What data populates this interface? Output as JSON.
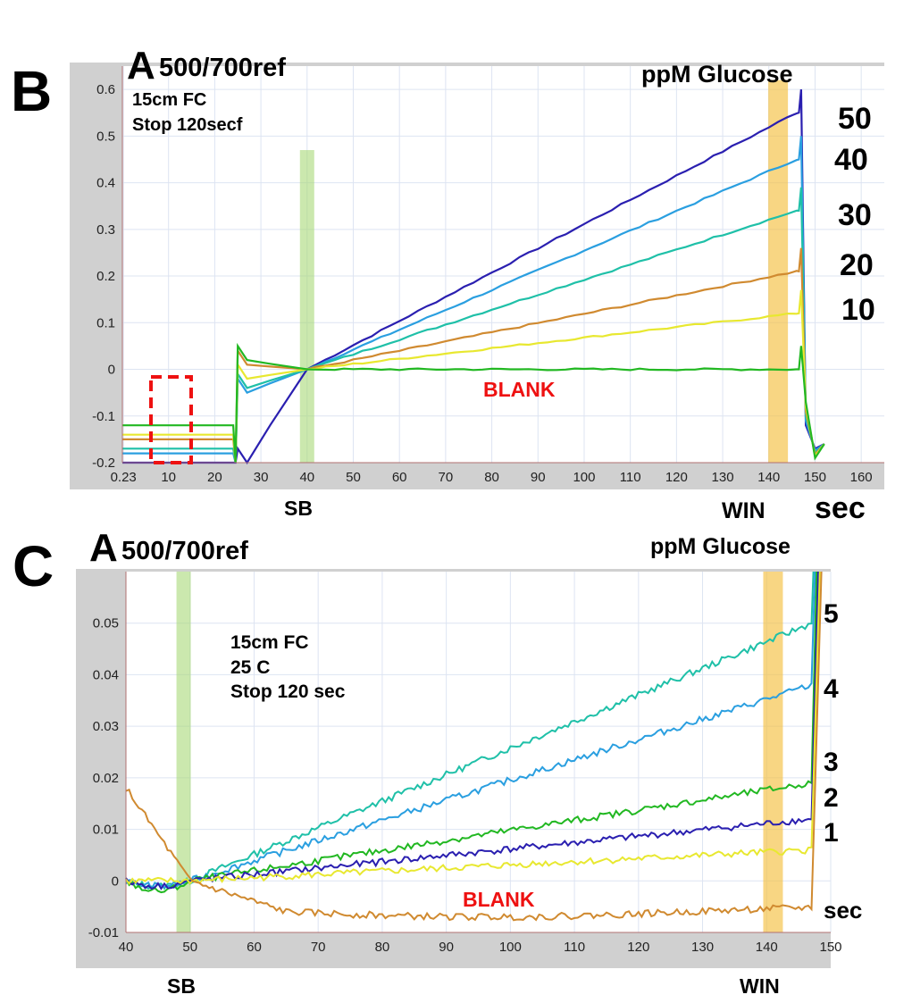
{
  "chart_data": [
    {
      "type": "line",
      "panel_label": "B",
      "title_letter": "A",
      "title_rest": "500/700ref",
      "conditions": [
        "15cm FC",
        "Stop 120secf"
      ],
      "legend_title": "ppM Glucose",
      "x_label": "sec",
      "xlim": [
        0,
        165
      ],
      "ylim": [
        -0.2,
        0.65
      ],
      "x_ticks": [
        "0.23",
        "10",
        "20",
        "30",
        "40",
        "50",
        "60",
        "70",
        "80",
        "90",
        "100",
        "110",
        "120",
        "130",
        "140",
        "150",
        "160"
      ],
      "y_ticks": [
        "0.6",
        "0.5",
        "0.4",
        "0.3",
        "0.2",
        "0.1",
        "0",
        "-0.1",
        "-0.2"
      ],
      "grid": true,
      "annotations": {
        "blank": "BLANK",
        "sb": "SB",
        "win": "WIN"
      },
      "markers": {
        "sb_time": 40,
        "win_time": 142
      },
      "series": [
        {
          "name": "50",
          "color": "#2a1fb0",
          "start_y": -0.2,
          "end_y": 0.55,
          "base": -0.2
        },
        {
          "name": "40",
          "color": "#2a9fe0",
          "start_y": -0.05,
          "end_y": 0.45,
          "base": -0.18
        },
        {
          "name": "30",
          "color": "#1fc0a8",
          "start_y": -0.04,
          "end_y": 0.34,
          "base": -0.17
        },
        {
          "name": "20",
          "color": "#d08a30",
          "start_y": 0.01,
          "end_y": 0.21,
          "base": -0.15
        },
        {
          "name": "10",
          "color": "#e8e830",
          "start_y": -0.02,
          "end_y": 0.12,
          "base": -0.14
        },
        {
          "name": "BLANK",
          "color": "#22b822",
          "start_y": 0.02,
          "end_y": 0.0,
          "base": -0.12
        }
      ]
    },
    {
      "type": "line",
      "panel_label": "C",
      "title_letter": "A",
      "title_rest": "500/700ref",
      "conditions": [
        "15cm FC",
        "25 C",
        "Stop 120 sec"
      ],
      "legend_title": "ppM Glucose",
      "x_label": "sec",
      "xlim": [
        40,
        150
      ],
      "ylim": [
        -0.01,
        0.06
      ],
      "x_ticks": [
        "40",
        "50",
        "60",
        "70",
        "80",
        "90",
        "100",
        "110",
        "120",
        "130",
        "140",
        "150"
      ],
      "y_ticks": [
        "0.05",
        "0.04",
        "0.03",
        "0.02",
        "0.01",
        "0",
        "-0.01"
      ],
      "grid": true,
      "annotations": {
        "blank": "BLANK",
        "sb": "SB",
        "win": "WIN"
      },
      "markers": {
        "sb_time": 49,
        "win_time": 141
      },
      "series": [
        {
          "name": "5",
          "color": "#1fc0a8",
          "start_y": -0.001,
          "end_y": 0.05
        },
        {
          "name": "4",
          "color": "#2a9fe0",
          "start_y": -0.001,
          "end_y": 0.038
        },
        {
          "name": "3",
          "color": "#22b822",
          "start_y": -0.002,
          "end_y": 0.019
        },
        {
          "name": "2",
          "color": "#2a1fb0",
          "start_y": -0.001,
          "end_y": 0.012
        },
        {
          "name": "1",
          "color": "#e8e830",
          "start_y": 0.0,
          "end_y": 0.006
        },
        {
          "name": "BLANK",
          "color": "#d08a30",
          "start_y": 0.018,
          "end_y": -0.006
        }
      ]
    }
  ]
}
